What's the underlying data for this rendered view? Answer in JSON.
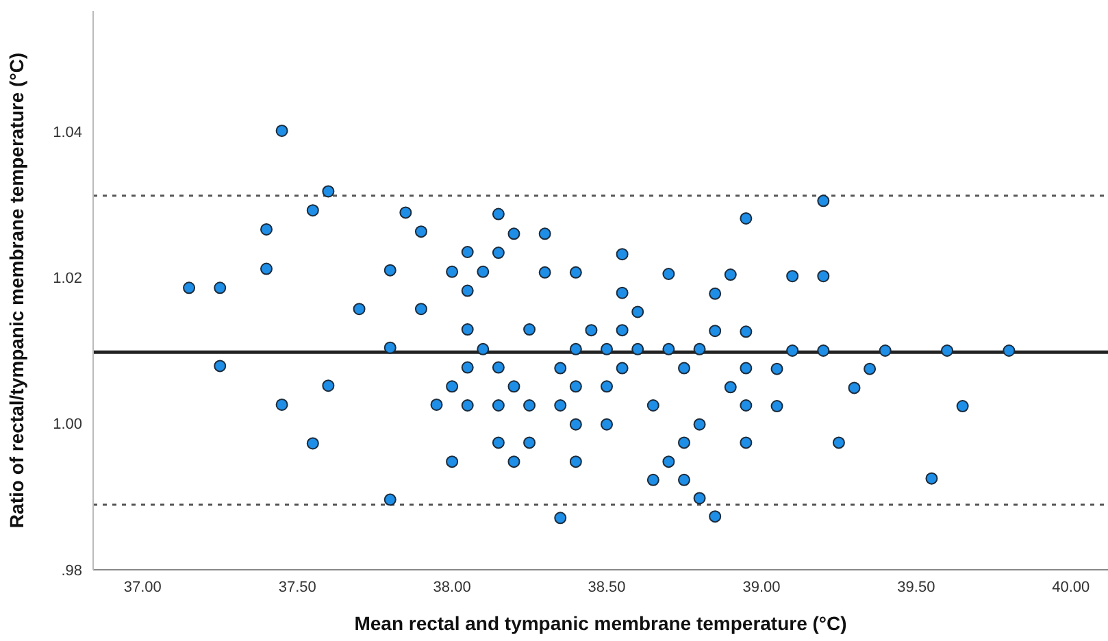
{
  "chart_data": {
    "type": "scatter",
    "xlabel": "Mean rectal and tympanic membrane temperature (°C)",
    "ylabel": "Ratio of rectal/tympanic membrane temperature (°C)",
    "x": [
      37.45,
      37.6,
      37.55,
      37.85,
      37.9,
      37.4,
      37.4,
      37.8,
      37.15,
      37.25,
      37.7,
      37.9,
      37.8,
      37.25,
      37.6,
      37.45,
      37.95,
      37.55,
      37.8,
      38.15,
      38.2,
      38.3,
      38.05,
      38.15,
      38.55,
      38.95,
      38.0,
      38.1,
      38.3,
      38.4,
      38.7,
      38.9,
      38.05,
      38.55,
      38.85,
      38.6,
      38.05,
      38.25,
      38.45,
      38.55,
      38.85,
      38.95,
      38.1,
      38.4,
      38.5,
      38.6,
      38.7,
      38.8,
      38.05,
      38.15,
      38.35,
      38.55,
      38.75,
      38.95,
      38.0,
      38.2,
      38.4,
      38.5,
      38.9,
      38.05,
      38.15,
      38.25,
      38.35,
      38.65,
      38.95,
      38.4,
      38.5,
      38.8,
      38.15,
      38.25,
      38.75,
      38.95,
      38.0,
      38.2,
      38.4,
      38.7,
      38.65,
      38.75,
      38.8,
      38.35,
      38.85,
      39.2,
      39.1,
      39.2,
      39.1,
      39.2,
      39.4,
      39.6,
      39.8,
      39.05,
      39.35,
      39.3,
      39.05,
      39.65,
      39.25,
      39.55
    ],
    "values": [
      1.0401,
      1.0318,
      1.0292,
      1.0289,
      1.0263,
      1.0266,
      1.0212,
      1.021,
      1.0186,
      1.0186,
      1.0157,
      1.0157,
      1.0104,
      1.0079,
      1.0052,
      1.0026,
      1.0026,
      0.9973,
      0.9896,
      1.0287,
      1.026,
      1.026,
      1.0235,
      1.0234,
      1.0232,
      1.0281,
      1.0208,
      1.0208,
      1.0207,
      1.0207,
      1.0205,
      1.0204,
      1.0182,
      1.0179,
      1.0178,
      1.0153,
      1.0129,
      1.0129,
      1.0128,
      1.0128,
      1.0127,
      1.0126,
      1.0102,
      1.0102,
      1.0102,
      1.0102,
      1.0102,
      1.0102,
      1.0077,
      1.0077,
      1.0076,
      1.0076,
      1.0076,
      1.0076,
      1.0051,
      1.0051,
      1.0051,
      1.0051,
      1.005,
      1.0025,
      1.0025,
      1.0025,
      1.0025,
      1.0025,
      1.0025,
      0.9999,
      0.9999,
      0.9999,
      0.9974,
      0.9974,
      0.9974,
      0.9974,
      0.9948,
      0.9948,
      0.9948,
      0.9948,
      0.9923,
      0.9923,
      0.9898,
      0.9871,
      0.9873,
      1.0305,
      1.0202,
      1.0202,
      1.01,
      1.01,
      1.01,
      1.01,
      1.01,
      1.0075,
      1.0075,
      1.0049,
      1.0024,
      1.0024,
      0.9974,
      0.9925
    ],
    "color": "#1e8ee6",
    "marker": "circle",
    "xlim": [
      36.84,
      40.12
    ],
    "xticks": [
      {
        "value": 37,
        "label": "37.00"
      },
      {
        "value": 37.5,
        "label": "37.50"
      },
      {
        "value": 38,
        "label": "38.00"
      },
      {
        "value": 38.5,
        "label": "38.50"
      },
      {
        "value": 39,
        "label": "39.00"
      },
      {
        "value": 39.5,
        "label": "39.50"
      },
      {
        "value": 40,
        "label": "40.00"
      }
    ],
    "ylim": [
      0.98,
      1.0565
    ],
    "yticks": [
      {
        "value": 0.98,
        "label": ".98"
      },
      {
        "value": 1.0,
        "label": "1.00"
      },
      {
        "value": 1.02,
        "label": "1.02"
      },
      {
        "value": 1.04,
        "label": "1.04"
      }
    ],
    "ref_lines": [
      {
        "axis": "y",
        "value": 1.0098,
        "color": "#222222",
        "line_style": "solid"
      },
      {
        "axis": "y",
        "value": 1.0312,
        "color": "#555555",
        "line_style": "dotted"
      },
      {
        "axis": "y",
        "value": 0.9889,
        "color": "#555555",
        "line_style": "dotted"
      }
    ],
    "grid": false,
    "legend": false
  }
}
